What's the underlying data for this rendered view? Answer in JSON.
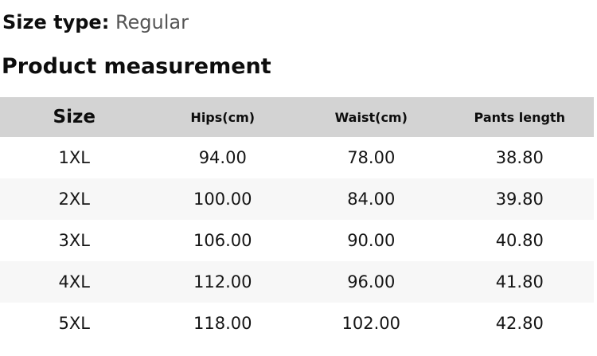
{
  "size_type": {
    "label": "Size type:",
    "value": "Regular"
  },
  "section_title": "Product measurement",
  "table": {
    "columns": [
      "Size",
      "Hips(cm)",
      "Waist(cm)",
      "Pants length"
    ],
    "rows": [
      [
        "1XL",
        "94.00",
        "78.00",
        "38.80"
      ],
      [
        "2XL",
        "100.00",
        "84.00",
        "39.80"
      ],
      [
        "3XL",
        "106.00",
        "90.00",
        "40.80"
      ],
      [
        "4XL",
        "112.00",
        "96.00",
        "41.80"
      ],
      [
        "5XL",
        "118.00",
        "102.00",
        "42.80"
      ]
    ]
  },
  "colors": {
    "header_bg": "#d3d3d3",
    "alt_row_bg": "#f7f7f7",
    "muted_text": "#555555",
    "text": "#0d0d0d"
  }
}
